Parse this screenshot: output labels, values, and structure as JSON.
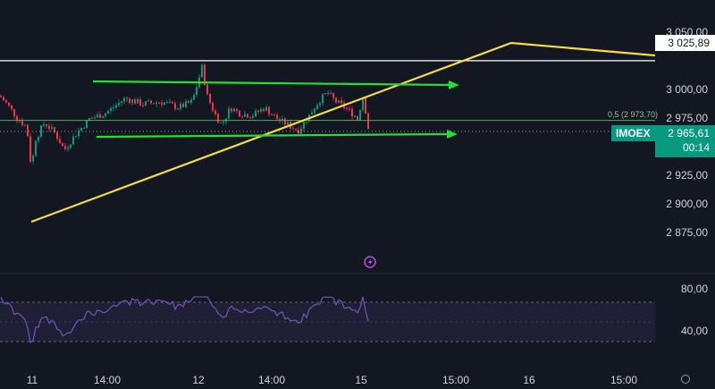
{
  "y_axis_labels": [
    "3 050,00",
    "3 000,00",
    "2 975,00",
    "2 950,00",
    "2 925,00",
    "2 900,00",
    "2 875,00"
  ],
  "y_axis_values": [
    3050,
    3000,
    2975,
    2950,
    2925,
    2900,
    2875
  ],
  "x_axis_labels": [
    "11",
    "14:00",
    "12",
    "14:00",
    "15",
    "15:00",
    "16",
    "15:00"
  ],
  "horizontal_level": {
    "label": "3 025,89",
    "value": 3025.89,
    "color": "#ffffff"
  },
  "fib_level": {
    "label": "0,5 (2 973,70)",
    "value": 2973.7,
    "color": "#4caf50"
  },
  "symbol": {
    "name": "IMOEX",
    "price": "2 965,61",
    "countdown": "00:14",
    "color": "#089981"
  },
  "rsi": {
    "labels": [
      "80,00",
      "40,00"
    ],
    "upper": 70,
    "lower": 30
  },
  "colors": {
    "up": "#089981",
    "down": "#f23645",
    "trend": "#f5dd42",
    "arrow": "#22e02f",
    "rsi_line": "#7e57c2",
    "rsi_band": "rgba(126,87,194,0.12)"
  },
  "icons": {
    "alert": "alert-clock-icon",
    "settings": "gear-icon"
  }
}
